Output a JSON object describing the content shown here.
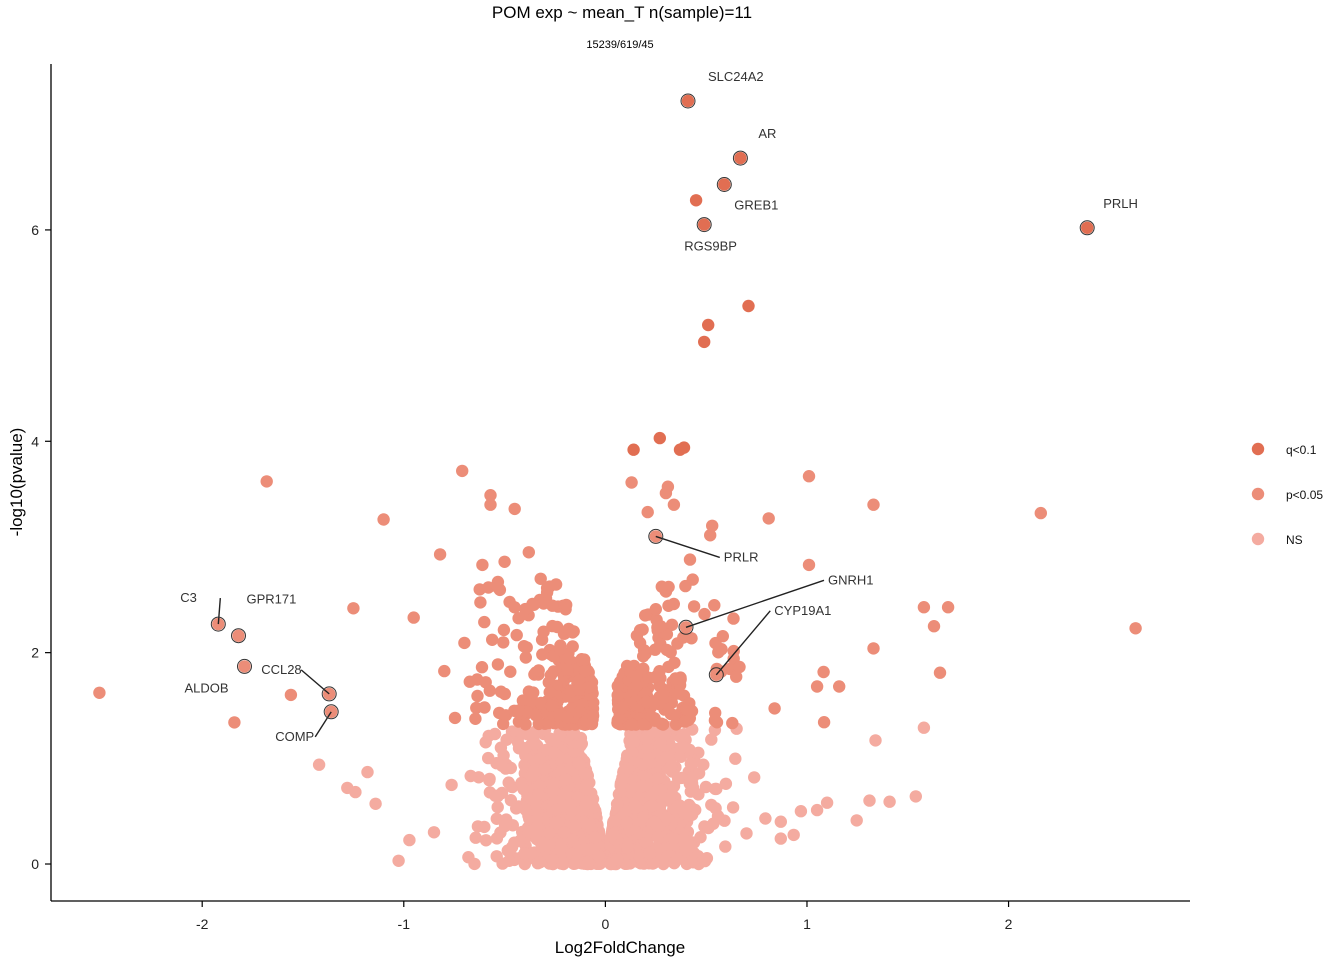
{
  "chart_data": {
    "type": "scatter",
    "title": "POM exp ~ mean_T n(sample)=11",
    "subtitle": "15239/619/45",
    "xlabel": "Log2FoldChange",
    "ylabel": "-log10(pvalue)",
    "xlim": [
      -2.75,
      2.9
    ],
    "ylim": [
      -0.35,
      7.57
    ],
    "xticks": [
      -2,
      -1,
      0,
      1,
      2
    ],
    "yticks": [
      0,
      2,
      4,
      6
    ],
    "legend": {
      "position": "right",
      "entries": [
        {
          "label": "q<0.1",
          "color": "#e16e52"
        },
        {
          "label": "p<0.05",
          "color": "#ec8d78"
        },
        {
          "label": "NS",
          "color": "#f4aba0"
        }
      ]
    },
    "series": [
      {
        "name": "q<0.1",
        "color": "#e16e52",
        "points": [
          [
            0.41,
            7.22
          ],
          [
            0.67,
            6.68
          ],
          [
            0.59,
            6.43
          ],
          [
            0.45,
            6.28
          ],
          [
            0.49,
            6.05
          ],
          [
            2.39,
            6.02
          ],
          [
            0.71,
            5.28
          ],
          [
            0.51,
            5.1
          ],
          [
            0.49,
            4.94
          ],
          [
            0.27,
            4.03
          ],
          [
            0.39,
            3.94
          ],
          [
            0.37,
            3.92
          ],
          [
            0.14,
            3.92
          ]
        ]
      },
      {
        "name": "p<0.05",
        "color": "#ec8d78",
        "points": [
          [
            -1.68,
            3.62
          ],
          [
            -0.71,
            3.72
          ],
          [
            -0.57,
            3.49
          ],
          [
            -0.57,
            3.4
          ],
          [
            -0.45,
            3.36
          ],
          [
            -1.1,
            3.26
          ],
          [
            1.01,
            3.67
          ],
          [
            1.33,
            3.4
          ],
          [
            2.16,
            3.32
          ],
          [
            0.81,
            3.27
          ],
          [
            0.13,
            3.61
          ],
          [
            0.31,
            3.57
          ],
          [
            0.3,
            3.51
          ],
          [
            0.34,
            3.4
          ],
          [
            0.21,
            3.33
          ],
          [
            0.53,
            3.2
          ],
          [
            0.52,
            3.11
          ],
          [
            0.25,
            3.1
          ],
          [
            0.42,
            2.88
          ],
          [
            1.01,
            2.83
          ],
          [
            -0.82,
            2.93
          ],
          [
            -0.5,
            2.86
          ],
          [
            -0.38,
            2.95
          ],
          [
            -0.61,
            2.83
          ],
          [
            -1.25,
            2.42
          ],
          [
            -1.92,
            2.27
          ],
          [
            -1.82,
            2.16
          ],
          [
            -1.79,
            1.87
          ],
          [
            -1.37,
            1.61
          ],
          [
            -1.36,
            1.44
          ],
          [
            -2.51,
            1.62
          ],
          [
            -1.84,
            1.34
          ],
          [
            -1.56,
            1.6
          ],
          [
            1.58,
            2.43
          ],
          [
            1.7,
            2.43
          ],
          [
            1.63,
            2.25
          ],
          [
            1.33,
            2.04
          ],
          [
            1.66,
            1.81
          ],
          [
            2.63,
            2.23
          ],
          [
            0.4,
            2.24
          ],
          [
            0.55,
            1.79
          ],
          [
            1.16,
            1.68
          ],
          [
            1.05,
            1.68
          ]
        ]
      },
      {
        "name": "NS",
        "color": "#f4aba0",
        "points": [
          [
            1.41,
            0.59
          ],
          [
            1.31,
            0.6
          ],
          [
            1.54,
            0.64
          ],
          [
            1.1,
            0.58
          ],
          [
            1.05,
            0.51
          ],
          [
            0.97,
            0.5
          ],
          [
            1.58,
            1.29
          ],
          [
            1.34,
            1.17
          ],
          [
            0.87,
            0.4
          ],
          [
            0.87,
            0.24
          ],
          [
            0.7,
            0.29
          ],
          [
            -1.42,
            0.94
          ],
          [
            -1.28,
            0.72
          ],
          [
            -1.24,
            0.68
          ],
          [
            -1.14,
            0.57
          ],
          [
            -0.85,
            0.3
          ],
          [
            -1.18,
            0.87
          ]
        ]
      }
    ],
    "highlighted": [
      {
        "label": "SLC24A2",
        "x": 0.41,
        "y": 7.22
      },
      {
        "label": "AR",
        "x": 0.67,
        "y": 6.68
      },
      {
        "label": "GREB1",
        "x": 0.59,
        "y": 6.43
      },
      {
        "label": "RGS9BP",
        "x": 0.49,
        "y": 6.05
      },
      {
        "label": "PRLH",
        "x": 2.39,
        "y": 6.02
      },
      {
        "label": "PRLR",
        "x": 0.25,
        "y": 3.1
      },
      {
        "label": "GNRH1",
        "x": 0.4,
        "y": 2.24
      },
      {
        "label": "CYP19A1",
        "x": 0.55,
        "y": 1.79
      },
      {
        "label": "C3",
        "x": -1.92,
        "y": 2.27
      },
      {
        "label": "GPR171",
        "x": -1.82,
        "y": 2.16
      },
      {
        "label": "CCL28",
        "x": -1.37,
        "y": 1.61
      },
      {
        "label": "ALDOB",
        "x": -1.79,
        "y": 1.87
      },
      {
        "label": "COMP",
        "x": -1.36,
        "y": 1.44
      }
    ]
  }
}
